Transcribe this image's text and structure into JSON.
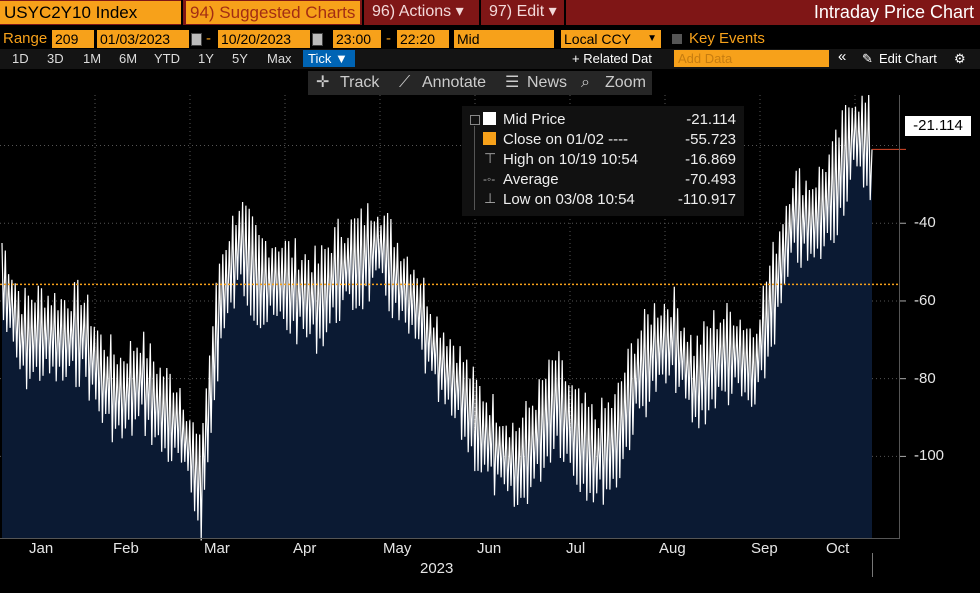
{
  "topbar": {
    "ticker": "USYC2Y10 Index",
    "suggested": "94) Suggested Charts",
    "actions": "96) Actions ▾",
    "edit": "97) Edit ▾",
    "title": "Intraday Price Chart"
  },
  "range": {
    "label": "Range",
    "count": "209",
    "start_date": "01/03/2023",
    "end_date": "10/20/2023",
    "start_time": "23:00",
    "end_time": "22:20",
    "dash": "-",
    "price_type": "Mid",
    "currency": "Local CCY",
    "key_events": "Key Events"
  },
  "periods": [
    "1D",
    "3D",
    "1M",
    "6M",
    "YTD",
    "1Y",
    "5Y",
    "Max"
  ],
  "tick_label": "Tick ▼",
  "related_data": "+ Related Dat",
  "add_data_placeholder": "Add Data",
  "edit_chart": "Edit Chart",
  "chart_toolbar": {
    "track": "Track",
    "annotate": "Annotate",
    "news": "News",
    "zoom": "Zoom"
  },
  "legend": [
    {
      "label": "Mid Price",
      "value": "-21.114",
      "color": "#ffffff"
    },
    {
      "label": "Close on 01/02 ----",
      "value": "-55.723",
      "color": "#f7a11a"
    },
    {
      "label": "High on 10/19 10:54",
      "value": "-16.869"
    },
    {
      "label": "Average",
      "value": "-70.493"
    },
    {
      "label": "Low on 03/08 10:54",
      "value": "-110.917"
    }
  ],
  "last_value": "-21.114",
  "colors": {
    "area_fill": "#0b1a33",
    "price_line": "#ffffff",
    "close_line": "#f7a11a",
    "accent": "#f7a11a",
    "topbar": "#7f1616"
  },
  "chart_data": {
    "type": "area",
    "title": "",
    "xlabel": "2023",
    "ylabel": "",
    "x_ticks": [
      "Jan",
      "Feb",
      "Mar",
      "Apr",
      "May",
      "Jun",
      "Jul",
      "Aug",
      "Sep",
      "Oct"
    ],
    "y_ticks": [
      -40,
      -60,
      -80,
      -100
    ],
    "ylim": [
      -121,
      -7
    ],
    "reference_line": -55.723,
    "grid": true,
    "series": [
      {
        "name": "Mid Price",
        "x": [
          "01/03",
          "01/10",
          "01/17",
          "01/24",
          "01/31",
          "02/07",
          "02/14",
          "02/21",
          "02/28",
          "03/06",
          "03/08",
          "03/13",
          "03/20",
          "03/27",
          "04/03",
          "04/10",
          "04/17",
          "04/24",
          "05/01",
          "05/08",
          "05/15",
          "05/22",
          "05/29",
          "06/05",
          "06/12",
          "06/19",
          "06/26",
          "07/03",
          "07/10",
          "07/17",
          "07/24",
          "07/31",
          "08/07",
          "08/14",
          "08/21",
          "08/28",
          "09/04",
          "09/11",
          "09/18",
          "09/25",
          "10/02",
          "10/09",
          "10/16",
          "10/19",
          "10/20"
        ],
        "values": [
          -55,
          -70,
          -68,
          -70,
          -68,
          -80,
          -85,
          -80,
          -88,
          -92,
          -108,
          -60,
          -45,
          -55,
          -55,
          -58,
          -60,
          -52,
          -50,
          -45,
          -55,
          -62,
          -75,
          -82,
          -92,
          -98,
          -103,
          -95,
          -85,
          -95,
          -100,
          -96,
          -80,
          -72,
          -70,
          -82,
          -75,
          -73,
          -78,
          -58,
          -38,
          -40,
          -32,
          -17,
          -21
        ]
      }
    ]
  }
}
